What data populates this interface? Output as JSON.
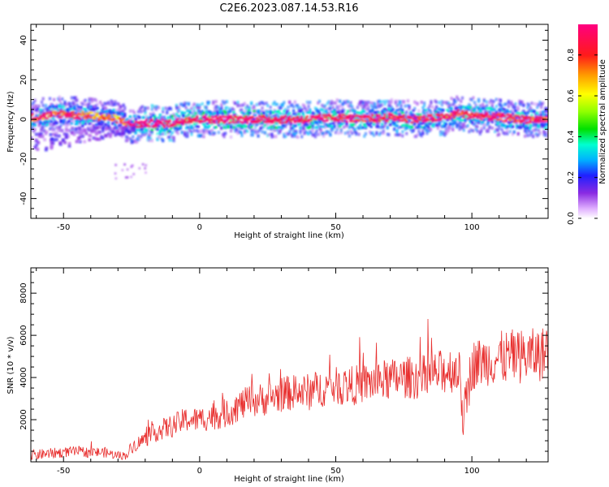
{
  "title": "C2E6.2023.087.14.53.R16",
  "chart_data": [
    {
      "type": "heatmap",
      "xlabel": "Height of straight line (km)",
      "ylabel": "Frequency (Hz)",
      "xlim": [
        -62,
        128
      ],
      "ylim": [
        -50,
        48
      ],
      "xticks": [
        -50,
        0,
        50,
        100
      ],
      "yticks": [
        -40,
        -20,
        0,
        20,
        40
      ],
      "grid": false,
      "colorbar": {
        "label": "Normalized spectral amplitude",
        "range": [
          0,
          0.95
        ],
        "ticks": [
          0.0,
          0.2,
          0.4,
          0.6,
          0.8
        ]
      },
      "ridge": {
        "x": [
          -60,
          -55,
          -50,
          -45,
          -40,
          -35,
          -30,
          -25,
          -20,
          -15,
          -10,
          -5,
          0,
          10,
          20,
          30,
          40,
          50,
          60,
          70,
          80,
          90,
          95,
          100,
          110,
          120,
          128
        ],
        "y": [
          1,
          2,
          3,
          2,
          2,
          1,
          0,
          -3,
          -2,
          -2,
          -2,
          0,
          0,
          0,
          0,
          0,
          0,
          1,
          0,
          1,
          0,
          1,
          3,
          2,
          1,
          0,
          0
        ]
      },
      "ridge_amplitude": [
        0.55,
        0.6,
        0.6,
        0.6,
        0.5,
        0.5,
        0.45,
        0.7,
        0.85,
        0.85,
        0.8,
        0.75,
        0.8,
        0.8,
        0.75,
        0.75,
        0.75,
        0.7,
        0.7,
        0.7,
        0.7,
        0.7,
        0.6,
        0.65,
        0.65,
        0.6,
        0.6
      ]
    },
    {
      "type": "line",
      "xlabel": "Height of straight line (km)",
      "ylabel": "SNR (10 * v/v)",
      "xlim": [
        -62,
        128
      ],
      "ylim": [
        0,
        9200
      ],
      "xticks": [
        -50,
        0,
        50,
        100
      ],
      "yticks": [
        2000,
        4000,
        6000,
        8000
      ],
      "grid": false,
      "series": [
        {
          "x": [
            -62,
            -55,
            -50,
            -45,
            -40,
            -35,
            -30,
            -27,
            -25,
            -20,
            -15,
            -10,
            -5,
            0,
            5,
            10,
            15,
            20,
            25,
            30,
            35,
            40,
            45,
            50,
            55,
            60,
            65,
            70,
            75,
            80,
            85,
            90,
            95,
            97,
            100,
            105,
            110,
            115,
            120,
            125,
            128
          ],
          "y": [
            300,
            400,
            450,
            500,
            450,
            450,
            300,
            300,
            700,
            1100,
            1500,
            1700,
            2000,
            2000,
            2200,
            2300,
            2700,
            2900,
            3000,
            3200,
            3300,
            3300,
            3500,
            3600,
            3600,
            3700,
            3800,
            3900,
            4000,
            4000,
            4100,
            4300,
            4500,
            2000,
            4600,
            4800,
            4900,
            5000,
            5000,
            5100,
            5200
          ],
          "spread": [
            250,
            250,
            250,
            250,
            250,
            250,
            200,
            200,
            300,
            400,
            500,
            550,
            600,
            600,
            700,
            700,
            750,
            800,
            800,
            850,
            850,
            900,
            900,
            900,
            950,
            950,
            1000,
            1000,
            1000,
            1050,
            1050,
            1100,
            1200,
            1200,
            1200,
            1200,
            1300,
            1300,
            1300,
            1300,
            1300
          ]
        }
      ]
    }
  ],
  "colors": {
    "line": "#e8302f",
    "axis": "#000000"
  }
}
